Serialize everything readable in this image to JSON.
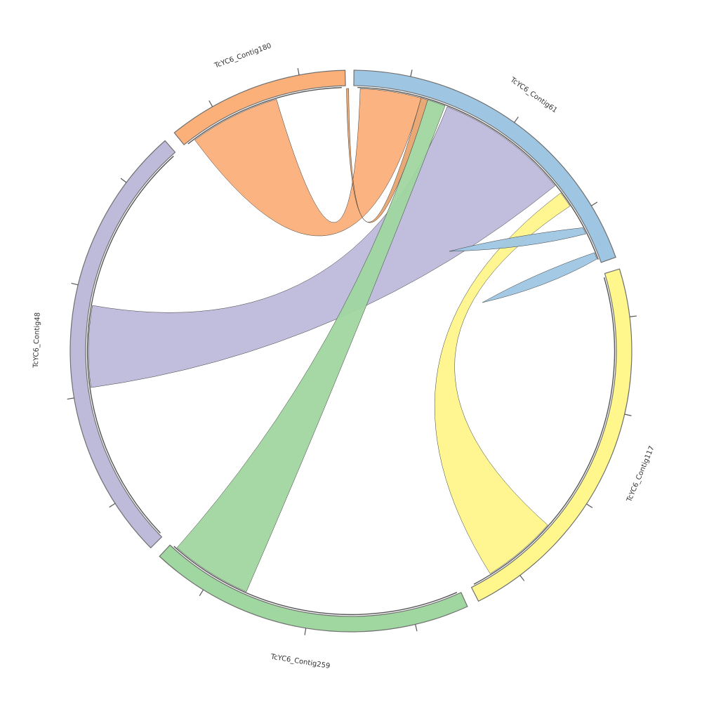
{
  "diagram": {
    "type": "chord",
    "sectors": [
      {
        "id": "c61",
        "label": "TcYC6_Contig61",
        "color": "#9ec6e3",
        "ticks": 3
      },
      {
        "id": "c117",
        "label": "TcYC6_Contig117",
        "color": "#fff68c",
        "ticks": 4
      },
      {
        "id": "c259",
        "label": "TcYC6_Contig259",
        "color": "#a0d6a0",
        "ticks": 3
      },
      {
        "id": "c48",
        "label": "TcYC6_Contig48",
        "color": "#bdbada",
        "ticks": 4
      },
      {
        "id": "c180",
        "label": "TcYC6_Contig180",
        "color": "#fbb07a",
        "ticks": 2
      }
    ],
    "links": [
      {
        "from": "c180",
        "to": "c61",
        "color": "#fbb07a",
        "opacity": 0.95
      },
      {
        "from": "c48",
        "to": "c61",
        "color": "#bdbada",
        "opacity": 0.95
      },
      {
        "from": "c61",
        "to": "c117",
        "color": "#fff68c",
        "opacity": 0.95
      },
      {
        "from": "c259",
        "to": "c61",
        "color": "#a0d6a0",
        "opacity": 0.95
      },
      {
        "from": "c180",
        "to": "c61",
        "color": "#e49a5e",
        "opacity": 0.85
      },
      {
        "from": "c61",
        "to": "c61",
        "color": "#9ec6e3",
        "opacity": 0.95
      },
      {
        "from": "c61",
        "to": "c61",
        "color": "#9ec6e3",
        "opacity": 0.95
      }
    ]
  }
}
